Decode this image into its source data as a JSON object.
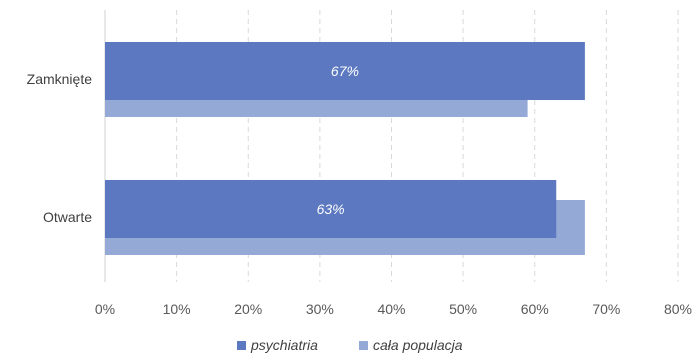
{
  "chart_data": {
    "type": "bar",
    "orientation": "horizontal",
    "title": "",
    "xlabel": "",
    "ylabel": "",
    "categories": [
      "Zamknięte",
      "Otwarte"
    ],
    "series": [
      {
        "name": "psychiatria",
        "values": [
          67,
          63
        ],
        "color": "#5b78c0",
        "labels": [
          "67%",
          "63%"
        ]
      },
      {
        "name": "cała populacja",
        "values": [
          59,
          67
        ],
        "color": "#94a9d6"
      }
    ],
    "xlim": [
      0,
      80
    ],
    "xticks": [
      "0%",
      "10%",
      "20%",
      "30%",
      "40%",
      "50%",
      "60%",
      "70%",
      "80%"
    ],
    "grid": "dashed-vertical",
    "legend_position": "bottom"
  }
}
